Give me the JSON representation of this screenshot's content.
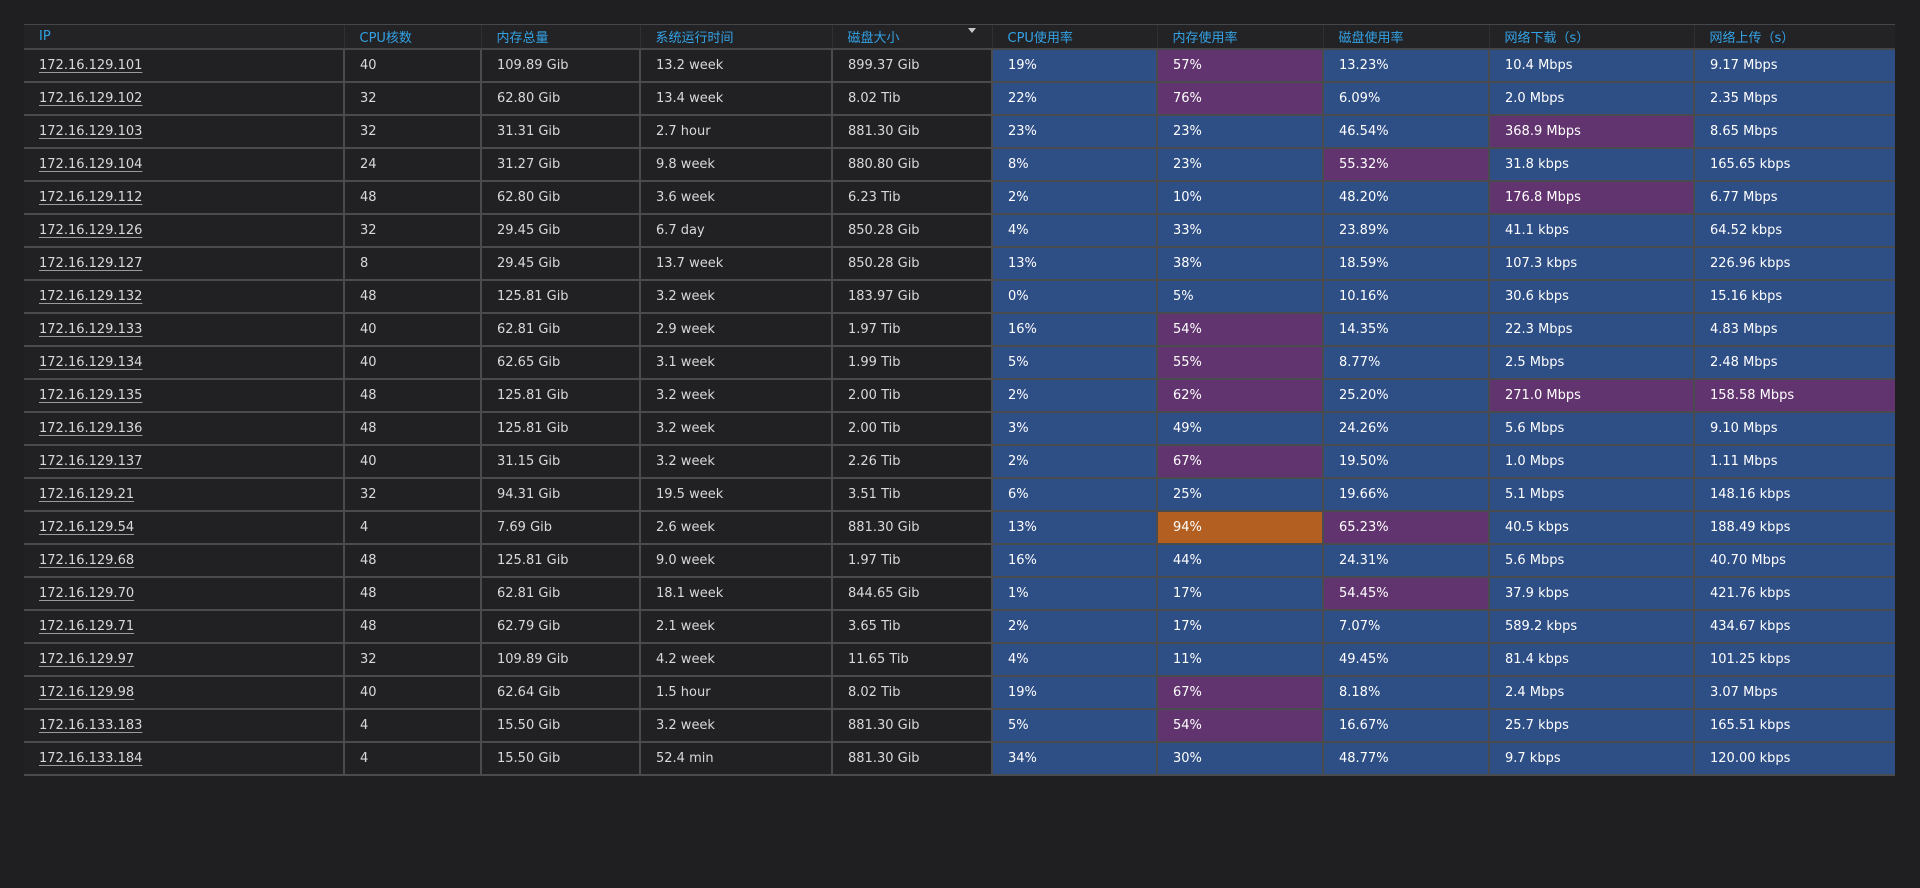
{
  "colors": {
    "normal": "#2e4e86",
    "warning": "#62346f",
    "critical": "#b35f22"
  },
  "headers": [
    "IP",
    "CPU核数",
    "内存总量",
    "系统运行时间",
    "磁盘大小",
    "CPU使用率",
    "内存使用率",
    "磁盘使用率",
    "网络下载（s）",
    "网络上传（s）"
  ],
  "sort": {
    "column": "磁盘大小",
    "direction": "desc",
    "icon": "caret-down-icon"
  },
  "rows": [
    {
      "ip": "172.16.129.101",
      "cpu_cores": "40",
      "mem_total": "109.89 Gib",
      "uptime": "13.2 week",
      "disk_size": "899.37 Gib",
      "cpu_usage": "19%",
      "cpu_level": "normal",
      "mem_usage": "57%",
      "mem_level": "warning",
      "disk_usage": "13.23%",
      "disk_level": "normal",
      "net_down": "10.4 Mbps",
      "down_level": "normal",
      "net_up": "9.17 Mbps",
      "up_level": "normal"
    },
    {
      "ip": "172.16.129.102",
      "cpu_cores": "32",
      "mem_total": "62.80 Gib",
      "uptime": "13.4 week",
      "disk_size": "8.02 Tib",
      "cpu_usage": "22%",
      "cpu_level": "normal",
      "mem_usage": "76%",
      "mem_level": "warning",
      "disk_usage": "6.09%",
      "disk_level": "normal",
      "net_down": "2.0 Mbps",
      "down_level": "normal",
      "net_up": "2.35 Mbps",
      "up_level": "normal"
    },
    {
      "ip": "172.16.129.103",
      "cpu_cores": "32",
      "mem_total": "31.31 Gib",
      "uptime": "2.7 hour",
      "disk_size": "881.30 Gib",
      "cpu_usage": "23%",
      "cpu_level": "normal",
      "mem_usage": "23%",
      "mem_level": "normal",
      "disk_usage": "46.54%",
      "disk_level": "normal",
      "net_down": "368.9 Mbps",
      "down_level": "warning",
      "net_up": "8.65 Mbps",
      "up_level": "normal"
    },
    {
      "ip": "172.16.129.104",
      "cpu_cores": "24",
      "mem_total": "31.27 Gib",
      "uptime": "9.8 week",
      "disk_size": "880.80 Gib",
      "cpu_usage": "8%",
      "cpu_level": "normal",
      "mem_usage": "23%",
      "mem_level": "normal",
      "disk_usage": "55.32%",
      "disk_level": "warning",
      "net_down": "31.8 kbps",
      "down_level": "normal",
      "net_up": "165.65 kbps",
      "up_level": "normal"
    },
    {
      "ip": "172.16.129.112",
      "cpu_cores": "48",
      "mem_total": "62.80 Gib",
      "uptime": "3.6 week",
      "disk_size": "6.23 Tib",
      "cpu_usage": "2%",
      "cpu_level": "normal",
      "mem_usage": "10%",
      "mem_level": "normal",
      "disk_usage": "48.20%",
      "disk_level": "normal",
      "net_down": "176.8 Mbps",
      "down_level": "warning",
      "net_up": "6.77 Mbps",
      "up_level": "normal"
    },
    {
      "ip": "172.16.129.126",
      "cpu_cores": "32",
      "mem_total": "29.45 Gib",
      "uptime": "6.7 day",
      "disk_size": "850.28 Gib",
      "cpu_usage": "4%",
      "cpu_level": "normal",
      "mem_usage": "33%",
      "mem_level": "normal",
      "disk_usage": "23.89%",
      "disk_level": "normal",
      "net_down": "41.1 kbps",
      "down_level": "normal",
      "net_up": "64.52 kbps",
      "up_level": "normal"
    },
    {
      "ip": "172.16.129.127",
      "cpu_cores": "8",
      "mem_total": "29.45 Gib",
      "uptime": "13.7 week",
      "disk_size": "850.28 Gib",
      "cpu_usage": "13%",
      "cpu_level": "normal",
      "mem_usage": "38%",
      "mem_level": "normal",
      "disk_usage": "18.59%",
      "disk_level": "normal",
      "net_down": "107.3 kbps",
      "down_level": "normal",
      "net_up": "226.96 kbps",
      "up_level": "normal"
    },
    {
      "ip": "172.16.129.132",
      "cpu_cores": "48",
      "mem_total": "125.81 Gib",
      "uptime": "3.2 week",
      "disk_size": "183.97 Gib",
      "cpu_usage": "0%",
      "cpu_level": "normal",
      "mem_usage": "5%",
      "mem_level": "normal",
      "disk_usage": "10.16%",
      "disk_level": "normal",
      "net_down": "30.6 kbps",
      "down_level": "normal",
      "net_up": "15.16 kbps",
      "up_level": "normal"
    },
    {
      "ip": "172.16.129.133",
      "cpu_cores": "40",
      "mem_total": "62.81 Gib",
      "uptime": "2.9 week",
      "disk_size": "1.97 Tib",
      "cpu_usage": "16%",
      "cpu_level": "normal",
      "mem_usage": "54%",
      "mem_level": "warning",
      "disk_usage": "14.35%",
      "disk_level": "normal",
      "net_down": "22.3 Mbps",
      "down_level": "normal",
      "net_up": "4.83 Mbps",
      "up_level": "normal"
    },
    {
      "ip": "172.16.129.134",
      "cpu_cores": "40",
      "mem_total": "62.65 Gib",
      "uptime": "3.1 week",
      "disk_size": "1.99 Tib",
      "cpu_usage": "5%",
      "cpu_level": "normal",
      "mem_usage": "55%",
      "mem_level": "warning",
      "disk_usage": "8.77%",
      "disk_level": "normal",
      "net_down": "2.5 Mbps",
      "down_level": "normal",
      "net_up": "2.48 Mbps",
      "up_level": "normal"
    },
    {
      "ip": "172.16.129.135",
      "cpu_cores": "48",
      "mem_total": "125.81 Gib",
      "uptime": "3.2 week",
      "disk_size": "2.00 Tib",
      "cpu_usage": "2%",
      "cpu_level": "normal",
      "mem_usage": "62%",
      "mem_level": "warning",
      "disk_usage": "25.20%",
      "disk_level": "normal",
      "net_down": "271.0 Mbps",
      "down_level": "warning",
      "net_up": "158.58 Mbps",
      "up_level": "warning"
    },
    {
      "ip": "172.16.129.136",
      "cpu_cores": "48",
      "mem_total": "125.81 Gib",
      "uptime": "3.2 week",
      "disk_size": "2.00 Tib",
      "cpu_usage": "3%",
      "cpu_level": "normal",
      "mem_usage": "49%",
      "mem_level": "normal",
      "disk_usage": "24.26%",
      "disk_level": "normal",
      "net_down": "5.6 Mbps",
      "down_level": "normal",
      "net_up": "9.10 Mbps",
      "up_level": "normal"
    },
    {
      "ip": "172.16.129.137",
      "cpu_cores": "40",
      "mem_total": "31.15 Gib",
      "uptime": "3.2 week",
      "disk_size": "2.26 Tib",
      "cpu_usage": "2%",
      "cpu_level": "normal",
      "mem_usage": "67%",
      "mem_level": "warning",
      "disk_usage": "19.50%",
      "disk_level": "normal",
      "net_down": "1.0 Mbps",
      "down_level": "normal",
      "net_up": "1.11 Mbps",
      "up_level": "normal"
    },
    {
      "ip": "172.16.129.21",
      "cpu_cores": "32",
      "mem_total": "94.31 Gib",
      "uptime": "19.5 week",
      "disk_size": "3.51 Tib",
      "cpu_usage": "6%",
      "cpu_level": "normal",
      "mem_usage": "25%",
      "mem_level": "normal",
      "disk_usage": "19.66%",
      "disk_level": "normal",
      "net_down": "5.1 Mbps",
      "down_level": "normal",
      "net_up": "148.16 kbps",
      "up_level": "normal"
    },
    {
      "ip": "172.16.129.54",
      "cpu_cores": "4",
      "mem_total": "7.69 Gib",
      "uptime": "2.6 week",
      "disk_size": "881.30 Gib",
      "cpu_usage": "13%",
      "cpu_level": "normal",
      "mem_usage": "94%",
      "mem_level": "critical",
      "disk_usage": "65.23%",
      "disk_level": "warning",
      "net_down": "40.5 kbps",
      "down_level": "normal",
      "net_up": "188.49 kbps",
      "up_level": "normal"
    },
    {
      "ip": "172.16.129.68",
      "cpu_cores": "48",
      "mem_total": "125.81 Gib",
      "uptime": "9.0 week",
      "disk_size": "1.97 Tib",
      "cpu_usage": "16%",
      "cpu_level": "normal",
      "mem_usage": "44%",
      "mem_level": "normal",
      "disk_usage": "24.31%",
      "disk_level": "normal",
      "net_down": "5.6 Mbps",
      "down_level": "normal",
      "net_up": "40.70 Mbps",
      "up_level": "normal"
    },
    {
      "ip": "172.16.129.70",
      "cpu_cores": "48",
      "mem_total": "62.81 Gib",
      "uptime": "18.1 week",
      "disk_size": "844.65 Gib",
      "cpu_usage": "1%",
      "cpu_level": "normal",
      "mem_usage": "17%",
      "mem_level": "normal",
      "disk_usage": "54.45%",
      "disk_level": "warning",
      "net_down": "37.9 kbps",
      "down_level": "normal",
      "net_up": "421.76 kbps",
      "up_level": "normal"
    },
    {
      "ip": "172.16.129.71",
      "cpu_cores": "48",
      "mem_total": "62.79 Gib",
      "uptime": "2.1 week",
      "disk_size": "3.65 Tib",
      "cpu_usage": "2%",
      "cpu_level": "normal",
      "mem_usage": "17%",
      "mem_level": "normal",
      "disk_usage": "7.07%",
      "disk_level": "normal",
      "net_down": "589.2 kbps",
      "down_level": "normal",
      "net_up": "434.67 kbps",
      "up_level": "normal"
    },
    {
      "ip": "172.16.129.97",
      "cpu_cores": "32",
      "mem_total": "109.89 Gib",
      "uptime": "4.2 week",
      "disk_size": "11.65 Tib",
      "cpu_usage": "4%",
      "cpu_level": "normal",
      "mem_usage": "11%",
      "mem_level": "normal",
      "disk_usage": "49.45%",
      "disk_level": "normal",
      "net_down": "81.4 kbps",
      "down_level": "normal",
      "net_up": "101.25 kbps",
      "up_level": "normal"
    },
    {
      "ip": "172.16.129.98",
      "cpu_cores": "40",
      "mem_total": "62.64 Gib",
      "uptime": "1.5 hour",
      "disk_size": "8.02 Tib",
      "cpu_usage": "19%",
      "cpu_level": "normal",
      "mem_usage": "67%",
      "mem_level": "warning",
      "disk_usage": "8.18%",
      "disk_level": "normal",
      "net_down": "2.4 Mbps",
      "down_level": "normal",
      "net_up": "3.07 Mbps",
      "up_level": "normal"
    },
    {
      "ip": "172.16.133.183",
      "cpu_cores": "4",
      "mem_total": "15.50 Gib",
      "uptime": "3.2 week",
      "disk_size": "881.30 Gib",
      "cpu_usage": "5%",
      "cpu_level": "normal",
      "mem_usage": "54%",
      "mem_level": "warning",
      "disk_usage": "16.67%",
      "disk_level": "normal",
      "net_down": "25.7 kbps",
      "down_level": "normal",
      "net_up": "165.51 kbps",
      "up_level": "normal"
    },
    {
      "ip": "172.16.133.184",
      "cpu_cores": "4",
      "mem_total": "15.50 Gib",
      "uptime": "52.4 min",
      "disk_size": "881.30 Gib",
      "cpu_usage": "34%",
      "cpu_level": "normal",
      "mem_usage": "30%",
      "mem_level": "normal",
      "disk_usage": "48.77%",
      "disk_level": "normal",
      "net_down": "9.7 kbps",
      "down_level": "normal",
      "net_up": "120.00 kbps",
      "up_level": "normal"
    }
  ]
}
